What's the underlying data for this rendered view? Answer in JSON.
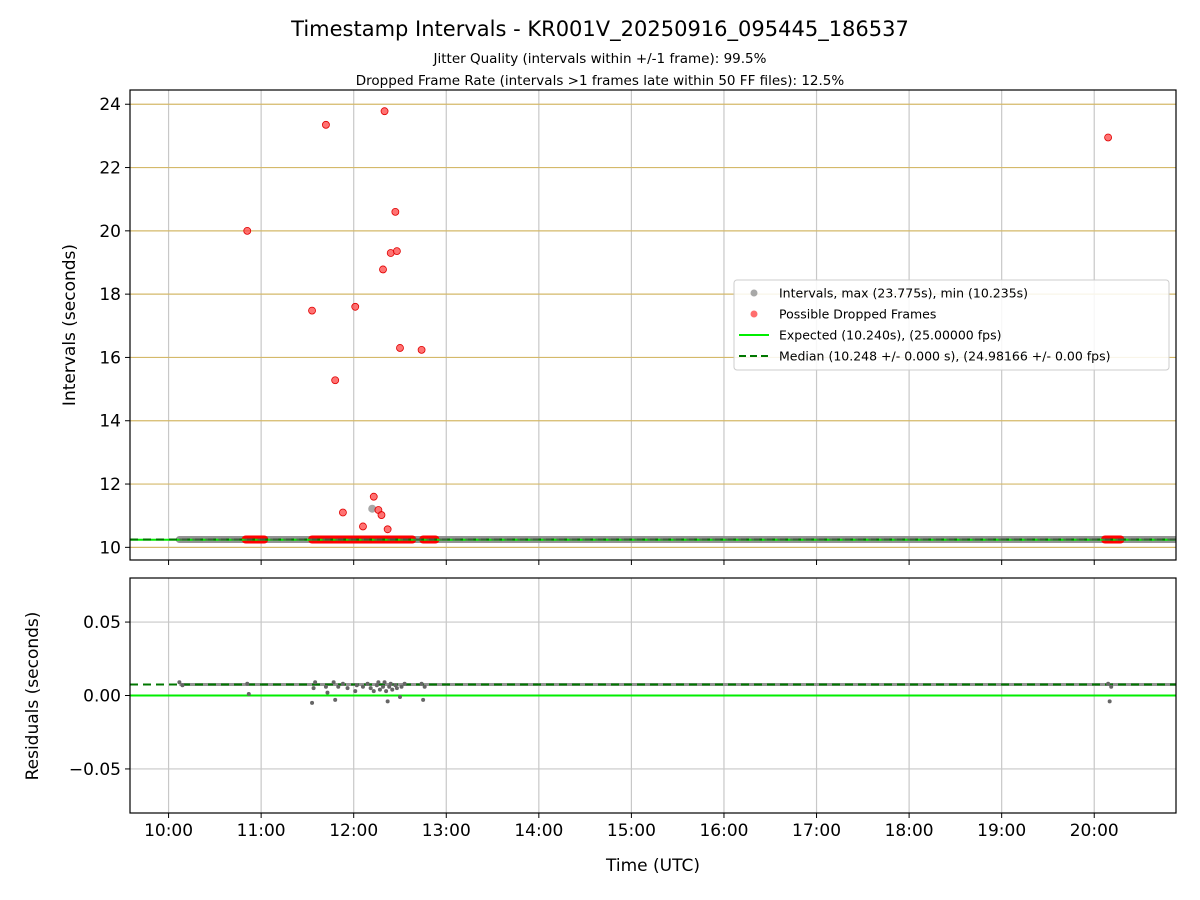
{
  "figure": {
    "title": "Timestamp Intervals - KR001V_20250916_095445_186537",
    "subtitle_1": "Jitter Quality (intervals within +/-1 frame): 99.5%",
    "subtitle_2": "Dropped Frame Rate (intervals >1 frames late within 50 FF files): 12.5%",
    "xlabel": "Time (UTC)"
  },
  "colors": {
    "intervals": "#808080",
    "dropped": "#ff0000",
    "expected": "#00ee00",
    "median": "#007700",
    "vgrid": "#c8c8c8",
    "hgrid_top": "#d4b96a",
    "hgrid_bottom": "#c8c8c8"
  },
  "chart_data": [
    {
      "type": "scatter",
      "ylabel": "Intervals (seconds)",
      "xlim": [
        "09:35",
        "20:53"
      ],
      "ylim": [
        9.6,
        24.45
      ],
      "x_ticks": [
        "10:00",
        "11:00",
        "12:00",
        "13:00",
        "14:00",
        "15:00",
        "16:00",
        "17:00",
        "18:00",
        "19:00",
        "20:00"
      ],
      "y_ticks": [
        10,
        12,
        14,
        16,
        18,
        20,
        22,
        24
      ],
      "grid": true,
      "legend_position": "center-right",
      "legend": [
        {
          "label": "Intervals, max (23.775s), min (10.235s)",
          "kind": "marker",
          "color": "#999999"
        },
        {
          "label": "Possible Dropped Frames",
          "kind": "marker",
          "color": "#ff5555"
        },
        {
          "label": "Expected (10.240s), (25.00000 fps)",
          "kind": "line",
          "color": "#00ee00"
        },
        {
          "label": "Median (10.248 +/- 0.000 s), (24.98166 +/- 0.00 fps)",
          "kind": "dashed",
          "color": "#007700"
        }
      ],
      "series": [
        {
          "name": "Intervals, max (23.775s), min (10.235s)",
          "band": {
            "x_start": "10:07",
            "x_end": "20:53",
            "y": 10.248
          },
          "points": [
            {
              "x": "12:12",
              "y": 11.22
            }
          ]
        },
        {
          "name": "Possible Dropped Frames",
          "band_ranges": [
            {
              "x_start": "10:50",
              "x_end": "11:02",
              "y": 10.248
            },
            {
              "x_start": "11:33",
              "x_end": "12:38",
              "y": 10.248
            },
            {
              "x_start": "12:45",
              "x_end": "12:53",
              "y": 10.248
            },
            {
              "x_start": "20:07",
              "x_end": "20:17",
              "y": 10.248
            }
          ],
          "points": [
            {
              "x": "10:51",
              "y": 20.0
            },
            {
              "x": "11:33",
              "y": 17.48
            },
            {
              "x": "11:42",
              "y": 23.35
            },
            {
              "x": "11:48",
              "y": 15.28
            },
            {
              "x": "11:53",
              "y": 11.1
            },
            {
              "x": "12:01",
              "y": 17.6
            },
            {
              "x": "12:06",
              "y": 10.66
            },
            {
              "x": "12:13",
              "y": 11.6
            },
            {
              "x": "12:16",
              "y": 11.18
            },
            {
              "x": "12:18",
              "y": 11.02
            },
            {
              "x": "12:19",
              "y": 18.78
            },
            {
              "x": "12:20",
              "y": 23.78
            },
            {
              "x": "12:22",
              "y": 10.57
            },
            {
              "x": "12:24",
              "y": 19.3
            },
            {
              "x": "12:27",
              "y": 20.6
            },
            {
              "x": "12:28",
              "y": 19.36
            },
            {
              "x": "12:30",
              "y": 16.3
            },
            {
              "x": "12:44",
              "y": 16.24
            },
            {
              "x": "20:09",
              "y": 22.95
            }
          ]
        },
        {
          "name": "Expected (10.240s), (25.00000 fps)",
          "y": 10.24
        },
        {
          "name": "Median (10.248 +/- 0.000 s), (24.98166 +/- 0.00 fps)",
          "y": 10.248
        }
      ]
    },
    {
      "type": "scatter",
      "ylabel": "Residuals (seconds)",
      "xlabel": "Time (UTC)",
      "xlim": [
        "09:35",
        "20:53"
      ],
      "ylim": [
        -0.08,
        0.08
      ],
      "x_ticks": [
        "10:00",
        "11:00",
        "12:00",
        "13:00",
        "14:00",
        "15:00",
        "16:00",
        "17:00",
        "18:00",
        "19:00",
        "20:00"
      ],
      "y_ticks": [
        {
          "v": 0.05,
          "label": "0.05"
        },
        {
          "v": 0.0,
          "label": "0.00"
        },
        {
          "v": -0.05,
          "label": "−0.05"
        }
      ],
      "grid": true,
      "series": [
        {
          "name": "Residuals",
          "baseline": {
            "x_start": "10:07",
            "x_end": "20:53",
            "y": 0.0075
          },
          "points": [
            {
              "x": "10:07",
              "y": 0.009
            },
            {
              "x": "10:09",
              "y": 0.007
            },
            {
              "x": "10:51",
              "y": 0.008
            },
            {
              "x": "10:52",
              "y": 0.001
            },
            {
              "x": "11:33",
              "y": -0.005
            },
            {
              "x": "11:34",
              "y": 0.005
            },
            {
              "x": "11:35",
              "y": 0.009
            },
            {
              "x": "11:42",
              "y": 0.006
            },
            {
              "x": "11:43",
              "y": 0.002
            },
            {
              "x": "11:47",
              "y": 0.009
            },
            {
              "x": "11:48",
              "y": -0.003
            },
            {
              "x": "11:50",
              "y": 0.006
            },
            {
              "x": "11:53",
              "y": 0.008
            },
            {
              "x": "11:56",
              "y": 0.005
            },
            {
              "x": "12:01",
              "y": 0.003
            },
            {
              "x": "12:02",
              "y": 0.007
            },
            {
              "x": "12:06",
              "y": 0.006
            },
            {
              "x": "12:09",
              "y": 0.008
            },
            {
              "x": "12:11",
              "y": 0.005
            },
            {
              "x": "12:13",
              "y": 0.003
            },
            {
              "x": "12:15",
              "y": 0.007
            },
            {
              "x": "12:16",
              "y": 0.009
            },
            {
              "x": "12:17",
              "y": 0.004
            },
            {
              "x": "12:19",
              "y": 0.006
            },
            {
              "x": "12:20",
              "y": 0.009
            },
            {
              "x": "12:21",
              "y": 0.003
            },
            {
              "x": "12:22",
              "y": -0.004
            },
            {
              "x": "12:23",
              "y": 0.006
            },
            {
              "x": "12:24",
              "y": 0.008
            },
            {
              "x": "12:25",
              "y": 0.004
            },
            {
              "x": "12:27",
              "y": 0.007
            },
            {
              "x": "12:28",
              "y": 0.005
            },
            {
              "x": "12:30",
              "y": -0.001
            },
            {
              "x": "12:31",
              "y": 0.006
            },
            {
              "x": "12:33",
              "y": 0.008
            },
            {
              "x": "12:44",
              "y": 0.008
            },
            {
              "x": "12:45",
              "y": -0.003
            },
            {
              "x": "12:46",
              "y": 0.006
            },
            {
              "x": "20:09",
              "y": 0.008
            },
            {
              "x": "20:10",
              "y": -0.004
            },
            {
              "x": "20:11",
              "y": 0.006
            }
          ]
        },
        {
          "name": "Expected",
          "y": 0.0
        },
        {
          "name": "Median",
          "y": 0.0075
        }
      ]
    }
  ]
}
